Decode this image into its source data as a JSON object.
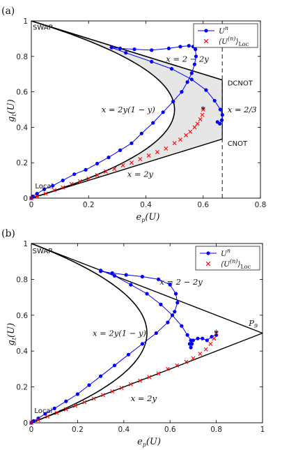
{
  "chart_data": [
    {
      "panel_label": "(a)",
      "type": "scatter",
      "xlabel": "e_p(U)",
      "ylabel": "g_t(U)",
      "xlim": [
        0,
        0.8
      ],
      "ylim": [
        0,
        1
      ],
      "xticks": [
        0,
        0.2,
        0.4,
        0.6,
        0.8
      ],
      "yticks": [
        0,
        0.2,
        0.4,
        0.6,
        0.8,
        1
      ],
      "xtick_labels": [
        "0",
        "0.2",
        "0.4",
        "0.6",
        "0.8"
      ],
      "ytick_labels": [
        "0",
        "0.2",
        "0.4",
        "0.6",
        "0.8",
        "1"
      ],
      "grid": false,
      "legend_position": "top-right",
      "annotations": [
        {
          "text": "SWAP",
          "x": 0.005,
          "y": 0.95
        },
        {
          "text": "x = 2 − 2y",
          "x": 0.47,
          "y": 0.77
        },
        {
          "text": "DCNOT",
          "x": 0.685,
          "y": 0.635
        },
        {
          "text": "x = 2y(1 − y)",
          "x": 0.245,
          "y": 0.485
        },
        {
          "text": "x = 2/3",
          "x": 0.685,
          "y": 0.485
        },
        {
          "text": "CNOT",
          "x": 0.685,
          "y": 0.295
        },
        {
          "text": "x = 2y",
          "x": 0.335,
          "y": 0.12
        },
        {
          "text": "Local",
          "x": 0.013,
          "y": 0.055
        }
      ],
      "series": [
        {
          "name": "U^n",
          "marker": "filled-circle-line",
          "color": "#0000ff",
          "x": [
            0.0,
            0.005,
            0.02,
            0.045,
            0.075,
            0.11,
            0.15,
            0.19,
            0.23,
            0.27,
            0.31,
            0.35,
            0.385,
            0.425,
            0.46,
            0.495,
            0.525,
            0.545,
            0.56,
            0.57,
            0.575,
            0.573,
            0.565,
            0.55,
            0.52,
            0.48,
            0.42,
            0.36,
            0.31,
            0.28,
            0.33,
            0.42,
            0.49,
            0.56,
            0.61,
            0.64,
            0.66,
            0.667,
            0.665,
            0.658,
            0.65
          ],
          "y": [
            0.0,
            0.01,
            0.025,
            0.05,
            0.07,
            0.1,
            0.135,
            0.16,
            0.195,
            0.23,
            0.27,
            0.31,
            0.365,
            0.425,
            0.485,
            0.545,
            0.6,
            0.655,
            0.705,
            0.755,
            0.8,
            0.84,
            0.855,
            0.86,
            0.855,
            0.845,
            0.835,
            0.84,
            0.845,
            0.85,
            0.82,
            0.77,
            0.73,
            0.67,
            0.61,
            0.55,
            0.5,
            0.47,
            0.44,
            0.42,
            0.43
          ]
        },
        {
          "name": "⟨U^(n)⟩_Loc",
          "marker": "x",
          "color": "#ff0000",
          "x": [
            0.0,
            0.02,
            0.05,
            0.08,
            0.11,
            0.14,
            0.17,
            0.2,
            0.23,
            0.26,
            0.29,
            0.32,
            0.35,
            0.38,
            0.41,
            0.44,
            0.47,
            0.5,
            0.52,
            0.54,
            0.555,
            0.57,
            0.58,
            0.59,
            0.597,
            0.6
          ],
          "y": [
            0.0,
            0.01,
            0.025,
            0.045,
            0.06,
            0.08,
            0.095,
            0.11,
            0.13,
            0.15,
            0.165,
            0.185,
            0.2,
            0.22,
            0.24,
            0.26,
            0.28,
            0.31,
            0.33,
            0.355,
            0.375,
            0.4,
            0.42,
            0.445,
            0.47,
            0.5
          ]
        }
      ],
      "end_marker": {
        "symbol": "*",
        "x": 0.6,
        "y": 0.5
      }
    },
    {
      "panel_label": "(b)",
      "type": "scatter",
      "xlabel": "e_p(U)",
      "ylabel": "g_t(U)",
      "xlim": [
        0,
        1
      ],
      "ylim": [
        0,
        1
      ],
      "xticks": [
        0,
        0.2,
        0.4,
        0.6,
        0.8,
        1
      ],
      "yticks": [
        0,
        0.2,
        0.4,
        0.6,
        0.8,
        1
      ],
      "xtick_labels": [
        "0",
        "0.2",
        "0.4",
        "0.6",
        "0.8",
        "1"
      ],
      "ytick_labels": [
        "0",
        "0.2",
        "0.4",
        "0.6",
        "0.8",
        "1"
      ],
      "grid": false,
      "legend_position": "top-right",
      "annotations": [
        {
          "text": "SWAP",
          "x": 0.005,
          "y": 0.945
        },
        {
          "text": "x = 2 − 2y",
          "x": 0.555,
          "y": 0.77
        },
        {
          "text": "x = 2y(1 − y)",
          "x": 0.265,
          "y": 0.485
        },
        {
          "text": "P_9",
          "x": 0.94,
          "y": 0.54
        },
        {
          "text": "x = 2y",
          "x": 0.43,
          "y": 0.12
        },
        {
          "text": "Local",
          "x": 0.013,
          "y": 0.055
        }
      ],
      "series": [
        {
          "name": "U^n",
          "marker": "filled-circle-line",
          "color": "#0000ff",
          "x": [
            0.0,
            0.01,
            0.03,
            0.06,
            0.1,
            0.15,
            0.2,
            0.25,
            0.3,
            0.36,
            0.42,
            0.48,
            0.54,
            0.59,
            0.62,
            0.632,
            0.625,
            0.6,
            0.55,
            0.48,
            0.41,
            0.35,
            0.3,
            0.3,
            0.36,
            0.43,
            0.5,
            0.56,
            0.61,
            0.65,
            0.675,
            0.69,
            0.695,
            0.69,
            0.685,
            0.7,
            0.72,
            0.74,
            0.76,
            0.78,
            0.8
          ],
          "y": [
            0.0,
            0.01,
            0.025,
            0.05,
            0.08,
            0.12,
            0.16,
            0.21,
            0.26,
            0.32,
            0.38,
            0.44,
            0.5,
            0.56,
            0.62,
            0.67,
            0.72,
            0.77,
            0.8,
            0.815,
            0.825,
            0.835,
            0.845,
            0.85,
            0.82,
            0.77,
            0.72,
            0.66,
            0.6,
            0.54,
            0.49,
            0.46,
            0.44,
            0.42,
            0.44,
            0.46,
            0.47,
            0.47,
            0.46,
            0.48,
            0.49
          ]
        },
        {
          "name": "⟨U^(n)⟩_Loc",
          "marker": "x",
          "color": "#ff0000",
          "x": [
            0.0,
            0.03,
            0.07,
            0.11,
            0.15,
            0.19,
            0.23,
            0.27,
            0.31,
            0.35,
            0.39,
            0.43,
            0.47,
            0.51,
            0.55,
            0.59,
            0.63,
            0.67,
            0.7,
            0.73,
            0.755,
            0.775,
            0.79,
            0.8
          ],
          "y": [
            0.0,
            0.015,
            0.035,
            0.055,
            0.075,
            0.095,
            0.115,
            0.135,
            0.155,
            0.175,
            0.195,
            0.215,
            0.235,
            0.255,
            0.275,
            0.3,
            0.32,
            0.34,
            0.36,
            0.385,
            0.41,
            0.44,
            0.47,
            0.5
          ]
        }
      ],
      "end_marker": {
        "symbol": "*",
        "x": 0.8,
        "y": 0.5
      }
    }
  ],
  "colors": {
    "series_blue": "#0000ff",
    "series_red": "#ff0000",
    "shaded_region": "#e6e6e6",
    "boundary": "#000000"
  }
}
